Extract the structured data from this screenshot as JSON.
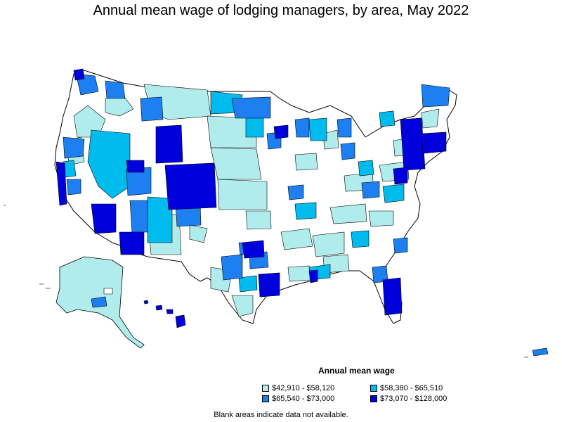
{
  "title": "Annual mean wage of lodging managers, by area, May 2022",
  "legend": {
    "title": "Annual mean wage",
    "items": [
      {
        "label": "$42,910 - $58,120",
        "color": "#b0ecec"
      },
      {
        "label": "$58,380 - $65,510",
        "color": "#00bbee"
      },
      {
        "label": "$65,540 - $73,000",
        "color": "#1e7ff0"
      },
      {
        "label": "$73,070 - $128,000",
        "color": "#0000dd"
      }
    ]
  },
  "note": "Blank areas indicate data not available."
}
